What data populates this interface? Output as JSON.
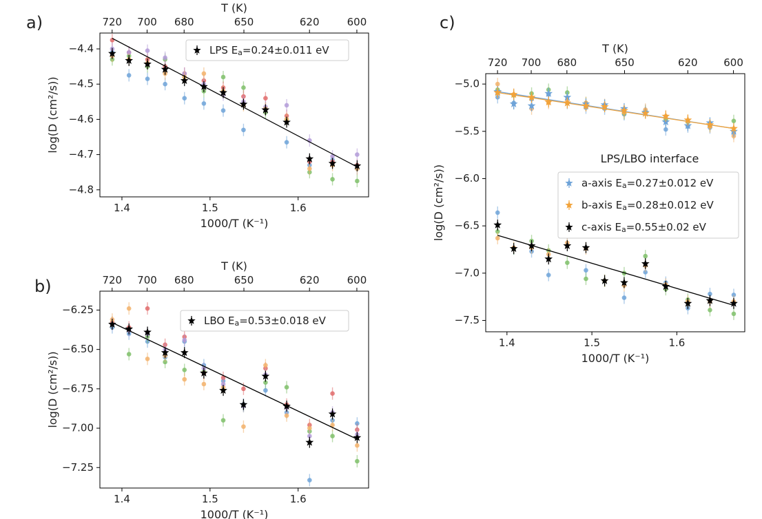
{
  "chart_data": [
    {
      "type": "scatter",
      "panel": "a)",
      "xlabel": "1000/T (K⁻¹)",
      "ylabel": "log(D (cm²/s))",
      "top_axis_label": "T (K)",
      "top_ticks": [
        720,
        700,
        680,
        650,
        620,
        600
      ],
      "xlim": [
        1.375,
        1.68
      ],
      "ylim": [
        -4.82,
        -4.355
      ],
      "x_ticks": [
        1.4,
        1.5,
        1.6
      ],
      "x_tick_labels": [
        "1.4",
        "1.5",
        "1.6"
      ],
      "y_ticks": [
        -4.8,
        -4.7,
        -4.6,
        -4.5,
        -4.4
      ],
      "y_tick_labels": [
        "−4.8",
        "−4.7",
        "−4.6",
        "−4.5",
        "−4.4"
      ],
      "legend_position": "top-right",
      "legend": [
        {
          "name": "LPS",
          "label": "LPS E",
          "sub": "a",
          "rest": "=0.24±0.011 eV",
          "color": "#000000",
          "marker": "star"
        }
      ],
      "x": [
        1.389,
        1.408,
        1.429,
        1.449,
        1.471,
        1.493,
        1.515,
        1.538,
        1.563,
        1.587,
        1.613,
        1.639,
        1.667
      ],
      "series": [
        {
          "name": "LPS",
          "color": "#000000",
          "marker": "star",
          "values": [
            -4.413,
            -4.433,
            -4.443,
            -4.458,
            -4.49,
            -4.507,
            -4.524,
            -4.557,
            -4.573,
            -4.608,
            -4.712,
            -4.725,
            -4.732
          ],
          "fit": [
            -4.37,
            -4.735
          ]
        },
        {
          "name": "run-blue",
          "color": "#6ea3d8",
          "marker": "dot",
          "values": [
            -4.41,
            -4.475,
            -4.485,
            -4.5,
            -4.54,
            -4.555,
            -4.575,
            -4.63,
            -4.57,
            -4.665,
            -4.73,
            -4.715,
            -4.74
          ]
        },
        {
          "name": "run-green",
          "color": "#7fbf6a",
          "marker": "dot",
          "values": [
            -4.43,
            -4.42,
            -4.45,
            -4.43,
            -4.48,
            -4.52,
            -4.48,
            -4.51,
            -4.58,
            -4.6,
            -4.75,
            -4.77,
            -4.775
          ]
        },
        {
          "name": "run-red",
          "color": "#e06b6b",
          "marker": "dot",
          "values": [
            -4.375,
            -4.41,
            -4.43,
            -4.45,
            -4.47,
            -4.49,
            -4.51,
            -4.535,
            -4.54,
            -4.59,
            -4.72,
            -4.72,
            -4.73
          ]
        },
        {
          "name": "run-purple",
          "color": "#b39bd8",
          "marker": "dot",
          "values": [
            -4.4,
            -4.41,
            -4.405,
            -4.425,
            -4.47,
            -4.5,
            -4.53,
            -4.55,
            -4.565,
            -4.56,
            -4.66,
            -4.705,
            -4.7
          ]
        },
        {
          "name": "run-orange",
          "color": "#f2b26b",
          "marker": "dot",
          "values": [
            -4.42,
            -4.43,
            -4.44,
            -4.47,
            -4.48,
            -4.47,
            -4.52,
            -4.56,
            -4.57,
            -4.6,
            -4.74,
            -4.73,
            -4.74
          ]
        }
      ]
    },
    {
      "type": "scatter",
      "panel": "b)",
      "xlabel": "1000/T (K⁻¹)",
      "ylabel": "log(D (cm²/s))",
      "top_axis_label": "T (K)",
      "top_ticks": [
        720,
        700,
        680,
        650,
        620,
        600
      ],
      "xlim": [
        1.375,
        1.68
      ],
      "ylim": [
        -7.38,
        -6.13
      ],
      "x_ticks": [
        1.4,
        1.5,
        1.6
      ],
      "x_tick_labels": [
        "1.4",
        "1.5",
        "1.6"
      ],
      "y_ticks": [
        -7.25,
        -7.0,
        -6.75,
        -6.5,
        -6.25
      ],
      "y_tick_labels": [
        "−7.25",
        "−7.00",
        "−6.75",
        "−6.50",
        "−6.25"
      ],
      "legend_position": "top-right",
      "legend": [
        {
          "name": "LBO",
          "label": "LBO E",
          "sub": "a",
          "rest": "=0.53±0.018 eV",
          "color": "#000000",
          "marker": "star"
        }
      ],
      "x": [
        1.389,
        1.408,
        1.429,
        1.449,
        1.471,
        1.493,
        1.515,
        1.538,
        1.563,
        1.587,
        1.613,
        1.639,
        1.667
      ],
      "series": [
        {
          "name": "LBO",
          "color": "#000000",
          "marker": "star",
          "values": [
            -6.34,
            -6.37,
            -6.39,
            -6.52,
            -6.52,
            -6.65,
            -6.76,
            -6.85,
            -6.67,
            -6.86,
            -7.09,
            -6.91,
            -7.06
          ],
          "fit": [
            -6.33,
            -7.07
          ]
        },
        {
          "name": "run-blue",
          "color": "#6ea3d8",
          "marker": "dot",
          "values": [
            -6.36,
            -6.4,
            -6.45,
            -6.55,
            -6.45,
            -6.6,
            -6.7,
            -6.85,
            -6.76,
            -6.9,
            -7.33,
            -6.95,
            -6.97
          ]
        },
        {
          "name": "run-green",
          "color": "#7fbf6a",
          "marker": "dot",
          "values": [
            -6.33,
            -6.53,
            -6.42,
            -6.58,
            -6.63,
            -6.64,
            -6.95,
            -6.86,
            -6.71,
            -6.74,
            -7.02,
            -7.05,
            -7.21
          ]
        },
        {
          "name": "run-red",
          "color": "#e06b6b",
          "marker": "dot",
          "values": [
            -6.33,
            -6.36,
            -6.24,
            -6.47,
            -6.42,
            -6.65,
            -6.68,
            -6.75,
            -6.62,
            -6.85,
            -6.98,
            -6.78,
            -7.01
          ]
        },
        {
          "name": "run-orange",
          "color": "#f2b26b",
          "marker": "dot",
          "values": [
            -6.31,
            -6.24,
            -6.56,
            -6.54,
            -6.69,
            -6.72,
            -6.74,
            -6.99,
            -6.6,
            -6.92,
            -7.0,
            -6.98,
            -7.11
          ]
        },
        {
          "name": "run-purple",
          "color": "#b39bd8",
          "marker": "dot",
          "values": [
            -6.34,
            -6.38,
            -6.4,
            -6.5,
            -6.44,
            -6.62,
            -6.72,
            -6.86,
            -6.66,
            -6.87,
            -7.05,
            -6.9,
            -7.04
          ]
        }
      ]
    },
    {
      "type": "scatter",
      "panel": "c)",
      "xlabel": "1000/T (K⁻¹)",
      "ylabel": "log(D (cm²/s))",
      "top_axis_label": "T (K)",
      "top_ticks": [
        720,
        700,
        680,
        650,
        620,
        600
      ],
      "xlim": [
        1.375,
        1.68
      ],
      "ylim": [
        -7.62,
        -4.89
      ],
      "x_ticks": [
        1.4,
        1.5,
        1.6
      ],
      "x_tick_labels": [
        "1.4",
        "1.5",
        "1.6"
      ],
      "y_ticks": [
        -7.5,
        -7.0,
        -6.5,
        -6.0,
        -5.5,
        -5.0
      ],
      "y_tick_labels": [
        "−7.5",
        "−7.0",
        "−6.5",
        "−6.0",
        "−5.5",
        "−5.0"
      ],
      "legend_position": "center-right",
      "legend_title": "LPS/LBO interface",
      "legend": [
        {
          "name": "a-axis",
          "label": "a-axis E",
          "sub": "a",
          "rest": "=0.27±0.012 eV",
          "color": "#6ea3d8",
          "marker": "star"
        },
        {
          "name": "b-axis",
          "label": "b-axis E",
          "sub": "a",
          "rest": "=0.28±0.012 eV",
          "color": "#f2a33a",
          "marker": "star"
        },
        {
          "name": "c-axis",
          "label": "c-axis E",
          "sub": "a",
          "rest": "=0.55±0.02 eV",
          "color": "#000000",
          "marker": "star"
        }
      ],
      "x": [
        1.389,
        1.408,
        1.429,
        1.449,
        1.471,
        1.493,
        1.515,
        1.538,
        1.563,
        1.587,
        1.613,
        1.639,
        1.667
      ],
      "series": [
        {
          "name": "a-axis",
          "color": "#6ea3d8",
          "marker": "star",
          "values": [
            -5.08,
            -5.21,
            -5.23,
            -5.1,
            -5.14,
            -5.21,
            -5.22,
            -5.26,
            -5.3,
            -5.4,
            -5.44,
            -5.41,
            -5.5
          ],
          "fit": [
            -5.08,
            -5.47
          ]
        },
        {
          "name": "b-axis",
          "color": "#f2a33a",
          "marker": "star",
          "values": [
            -5.09,
            -5.11,
            -5.14,
            -5.19,
            -5.2,
            -5.23,
            -5.24,
            -5.28,
            -5.31,
            -5.34,
            -5.38,
            -5.43,
            -5.47
          ],
          "fit": [
            -5.09,
            -5.47
          ]
        },
        {
          "name": "c-axis",
          "color": "#000000",
          "marker": "star",
          "values": [
            -6.49,
            -6.74,
            -6.71,
            -6.85,
            -6.71,
            -6.73,
            -7.08,
            -7.1,
            -6.9,
            -7.14,
            -7.32,
            -7.29,
            -7.32
          ],
          "fit": [
            -6.6,
            -7.34
          ]
        },
        {
          "name": "run-blue",
          "color": "#6ea3d8",
          "marker": "dot",
          "values": [
            -5.14,
            -5.2,
            -5.16,
            -5.11,
            -5.2,
            -5.25,
            -5.26,
            -5.32,
            -5.28,
            -5.48,
            -5.45,
            -5.46,
            -5.52
          ]
        },
        {
          "name": "run-green",
          "color": "#7fbf6a",
          "marker": "dot",
          "values": [
            -5.06,
            -5.12,
            -5.1,
            -5.06,
            -5.09,
            -5.2,
            -5.23,
            -5.31,
            -5.29,
            -5.38,
            -5.4,
            -5.44,
            -5.39
          ]
        },
        {
          "name": "run-orange",
          "color": "#f2b26b",
          "marker": "dot",
          "values": [
            -5.0,
            -5.11,
            -5.26,
            -5.2,
            -5.17,
            -5.2,
            -5.22,
            -5.3,
            -5.27,
            -5.34,
            -5.39,
            -5.45,
            -5.55
          ]
        },
        {
          "name": "run-blue-low",
          "color": "#6ea3d8",
          "marker": "dot",
          "values": [
            -6.36,
            -6.74,
            -6.77,
            -7.02,
            -6.6,
            -6.97,
            -7.08,
            -7.26,
            -6.99,
            -7.1,
            -7.37,
            -7.22,
            -7.23
          ]
        },
        {
          "name": "run-green-low",
          "color": "#7fbf6a",
          "marker": "dot",
          "values": [
            -6.56,
            -6.74,
            -6.66,
            -6.76,
            -6.89,
            -7.06,
            -7.08,
            -7.0,
            -6.82,
            -7.17,
            -7.28,
            -7.39,
            -7.43
          ]
        },
        {
          "name": "run-orange-low",
          "color": "#f2b26b",
          "marker": "dot",
          "values": [
            -6.63,
            -6.73,
            -6.73,
            -6.8,
            -6.68,
            -6.74,
            -7.08,
            -7.13,
            -6.92,
            -7.12,
            -7.3,
            -7.3,
            -7.3
          ]
        }
      ]
    }
  ]
}
